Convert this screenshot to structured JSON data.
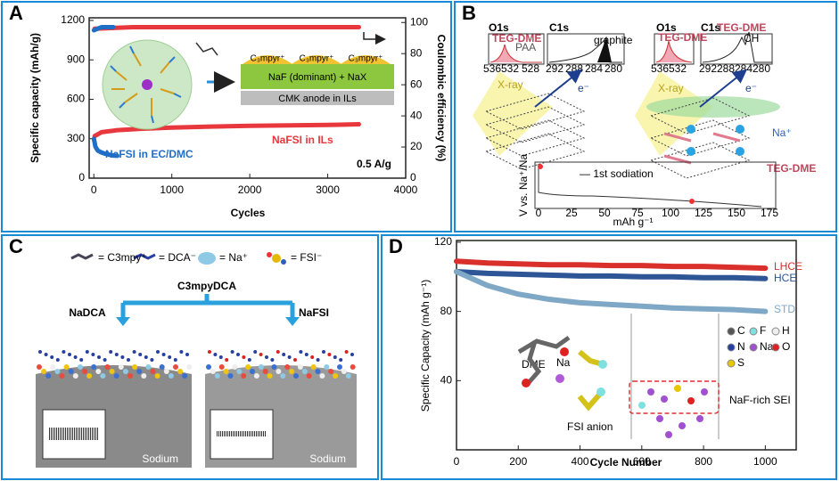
{
  "labels": [
    "A",
    "B",
    "C",
    "D"
  ],
  "chart_data": [
    {
      "type": "line",
      "xlabel": "Cycles",
      "ylabel": "Specific capacity (mAh/g)",
      "y2label": "Coulombic efficiency (%)",
      "xlim": [
        -60,
        4000
      ],
      "xticks": [
        0,
        1000,
        2000,
        3000,
        4000
      ],
      "ylim": [
        0,
        1220
      ],
      "yticks": [
        0,
        300,
        600,
        900,
        1200
      ],
      "y2lim": [
        0,
        103
      ],
      "y2ticks": [
        0,
        20,
        40,
        60,
        80,
        100
      ],
      "series": [
        {
          "name": "NaFSI in ILs",
          "color": "#e8383d",
          "x": [
            10,
            100,
            300,
            600,
            1000,
            1500,
            2000,
            2500,
            3000,
            3400
          ],
          "values": [
            320,
            350,
            365,
            375,
            385,
            392,
            398,
            402,
            405,
            410
          ]
        },
        {
          "name": "NaFSI in EC/DMC",
          "color": "#1f6fc6",
          "x": [
            1,
            20,
            50,
            100,
            150,
            200,
            250,
            300
          ],
          "values": [
            300,
            240,
            210,
            195,
            185,
            178,
            172,
            170
          ]
        },
        {
          "color": "#e8383d",
          "axis": "y2",
          "x": [
            10,
            500,
            1000,
            1500,
            2000,
            2500,
            3000,
            3400
          ],
          "values": [
            96,
            97,
            97,
            97,
            97,
            97,
            97,
            97
          ]
        },
        {
          "color": "#1f6fc6",
          "axis": "y2",
          "x": [
            1,
            50,
            100,
            150,
            200,
            250
          ],
          "values": [
            95,
            96,
            97,
            97,
            97,
            97
          ]
        }
      ],
      "annotations": [
        "0.5 A/g"
      ],
      "inset": [
        "C₃mpyr⁺",
        "C₃mpyr⁺",
        "C₃mpyr⁺",
        "NaF (dominant) + NaX",
        "CMK anode in ILs"
      ]
    },
    {
      "type": "line",
      "xlabel": "Cycle Number",
      "ylabel": "Specific Capacity (mAh g⁻¹)",
      "xlim": [
        0,
        1100
      ],
      "xticks": [
        0,
        200,
        400,
        600,
        800,
        1000
      ],
      "ylim": [
        0,
        121
      ],
      "yticks": [
        40,
        80,
        120
      ],
      "series": [
        {
          "name": "LHCE",
          "color": "#d9302c",
          "x": [
            0,
            100,
            200,
            300,
            400,
            500,
            600,
            700,
            800,
            900,
            1000
          ],
          "values": [
            109,
            108,
            107.5,
            107,
            107,
            106.5,
            106.5,
            106,
            106,
            105.5,
            105
          ]
        },
        {
          "name": "HCE",
          "color": "#2e5596",
          "x": [
            0,
            100,
            200,
            300,
            400,
            500,
            600,
            700,
            800,
            900,
            1000
          ],
          "values": [
            103,
            102,
            101.5,
            101,
            100.5,
            100.5,
            100,
            100,
            99.5,
            99.5,
            99
          ]
        },
        {
          "name": "STD",
          "color": "#7fa8c6",
          "x": [
            0,
            100,
            200,
            300,
            400,
            500,
            600,
            700,
            800,
            900,
            1000
          ],
          "values": [
            103,
            95,
            90,
            87,
            85,
            84,
            83,
            82,
            81.5,
            81,
            80
          ]
        }
      ],
      "annotations": [
        "DME",
        "Na",
        "FSI anion",
        "NaF-rich SEI"
      ],
      "elements": [
        "C",
        "F",
        "H",
        "N",
        "Na",
        "O",
        "S"
      ]
    }
  ],
  "panel_b": {
    "left_o1s": "O1s",
    "left_c1s": "C1s",
    "left_tegdme": "TEG-DME",
    "paa": "PAA",
    "left_o_ticks": [
      "536",
      "532",
      "528"
    ],
    "left_c_ticks": [
      "292",
      "288",
      "284",
      "280"
    ],
    "graphite": "graphite",
    "left_xray": "X-ray",
    "left_e": "e⁻",
    "right_o1s": "O1s",
    "right_c1s": "C1s",
    "right_tegdme_o": "TEG-DME",
    "right_tegdme_c": "TEG-DME",
    "ch": "CH",
    "right_o_ticks": [
      "536",
      "532"
    ],
    "right_c_ticks": [
      "292",
      "288",
      "284",
      "280"
    ],
    "right_xray": "X-ray",
    "right_e": "e⁻",
    "na": "Na⁺",
    "tegdme_label": "TEG-DME",
    "sodiation": "— 1st sodiation",
    "v_label": "V vs. Na⁺/Na",
    "v_ticks": [
      "0",
      "25",
      "50",
      "75",
      "100",
      "125",
      "150",
      "175"
    ],
    "cap_label": "mAh g⁻¹"
  },
  "panel_c": {
    "c3mpy": "= C3mpy⁺",
    "dca": "= DCA⁻",
    "na": "= Na⁺",
    "fsi": "= FSI⁻",
    "nadca": "NaDCA",
    "c3mpydca": "C3mpyDCA",
    "nafsi": "NaFSI",
    "sodium_left": "Sodium",
    "sodium_right": "Sodium"
  }
}
